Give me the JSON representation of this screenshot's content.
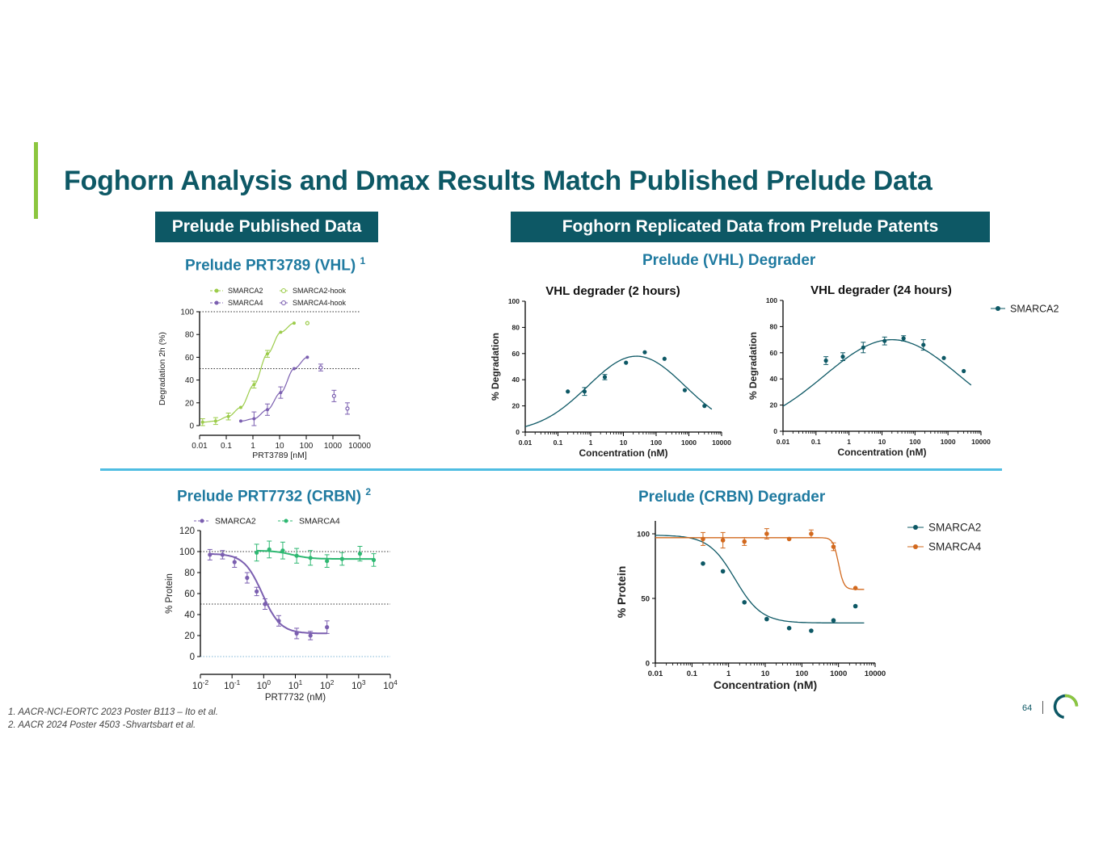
{
  "title": "Foghorn Analysis and Dmax Results Match Published Prelude Data",
  "banners": {
    "left": "Prelude Published Data",
    "right": "Foghorn Replicated Data from Prelude Patents"
  },
  "subtitles": {
    "vhl_published": "Prelude PRT3789 (VHL)",
    "vhl_published_ref": "1",
    "vhl_replicated": "Prelude (VHL) Degrader",
    "crbn_published": "Prelude PRT7732 (CRBN)",
    "crbn_published_ref": "2",
    "crbn_replicated": "Prelude (CRBN) Degrader"
  },
  "footnotes": [
    "1. AACR-NCI-EORTC 2023 Poster B113 – Ito et al.",
    "2. AACR 2024 Poster 4503 -Shvartsbart et al."
  ],
  "page_number": "64",
  "colors": {
    "title": "#0d5865",
    "accent": "#8cc63f",
    "subtitle": "#1f7aa0",
    "divider": "#4fbde2",
    "teal_series": "#0d5865",
    "orange_series": "#d2691e",
    "green_series": "#9ccc4a",
    "purple_series": "#7b5fb0",
    "green2_series": "#2eb872"
  },
  "chart_data": [
    {
      "id": "prt3789",
      "type": "scatter",
      "title": "",
      "xlabel": "PRT3789 [nM]",
      "ylabel": "Degradation 2h (%)",
      "xscale": "log",
      "xlim": [
        0.01,
        10000
      ],
      "ylim": [
        0,
        100
      ],
      "xticks": [
        0.01,
        0.1,
        1,
        10,
        100,
        1000,
        10000
      ],
      "xtick_labels": [
        "0.01",
        "0.1",
        "1",
        "10",
        "100",
        "1000",
        "10000"
      ],
      "yticks": [
        0,
        20,
        40,
        60,
        80,
        100
      ],
      "ytick_labels": [
        "0",
        "20",
        "40",
        "60",
        "80",
        "100"
      ],
      "reference_lines": [
        50,
        100
      ],
      "legend_position": "top",
      "series": [
        {
          "name": "SMARCA2",
          "color": "#9ccc4a",
          "marker": "filled",
          "x": [
            0.013,
            0.04,
            0.12,
            0.35,
            1.1,
            3.5,
            11,
            35
          ],
          "y": [
            3,
            4,
            8,
            16,
            36,
            63,
            82,
            90
          ],
          "err": [
            3,
            3,
            3,
            0,
            3,
            3,
            0,
            0
          ],
          "curve": true
        },
        {
          "name": "SMARCA4",
          "color": "#7b5fb0",
          "marker": "filled",
          "x": [
            0.35,
            1.1,
            3.5,
            11,
            35,
            110
          ],
          "y": [
            4,
            6,
            14,
            29,
            50,
            60
          ],
          "err": [
            0,
            6,
            5,
            5,
            0,
            0
          ],
          "curve": true
        },
        {
          "name": "SMARCA2-hook",
          "color": "#9ccc4a",
          "marker": "open",
          "x": [
            110
          ],
          "y": [
            90
          ],
          "err": [
            0
          ],
          "curve": false
        },
        {
          "name": "SMARCA4-hook",
          "color": "#7b5fb0",
          "marker": "open",
          "x": [
            350,
            1100,
            3500
          ],
          "y": [
            51,
            26,
            15
          ],
          "err": [
            3,
            5,
            5
          ],
          "curve": false
        }
      ]
    },
    {
      "id": "vhl2h",
      "type": "scatter",
      "title": "VHL degrader (2 hours)",
      "xlabel": "Concentration (nM)",
      "ylabel": "% Degradation",
      "xscale": "log",
      "xlim": [
        0.01,
        10000
      ],
      "ylim": [
        0,
        100
      ],
      "xticks": [
        0.01,
        0.1,
        1,
        10,
        100,
        1000,
        10000
      ],
      "xtick_labels": [
        "0.01",
        "0.1",
        "1",
        "10",
        "100",
        "1000",
        "10000"
      ],
      "yticks": [
        0,
        20,
        40,
        60,
        80,
        100
      ],
      "ytick_labels": [
        "0",
        "20",
        "40",
        "60",
        "80",
        "100"
      ],
      "series": [
        {
          "name": "SMARCA2",
          "color": "#0d5865",
          "marker": "filled",
          "x": [
            0.2,
            0.65,
            2.7,
            12,
            45,
            180,
            750,
            3000
          ],
          "y": [
            31,
            31,
            42,
            53,
            61,
            56,
            32,
            20
          ],
          "err": [
            0,
            3,
            2,
            0,
            0,
            0,
            0,
            0
          ],
          "curve": true,
          "curve_model": {
            "kind": "bell",
            "peak": 58,
            "center_log10": 1.4,
            "width": 2.1
          }
        }
      ]
    },
    {
      "id": "vhl24h",
      "type": "scatter",
      "title": "VHL degrader (24 hours)",
      "xlabel": "Concentration (nM)",
      "ylabel": "% Degradation",
      "xscale": "log",
      "xlim": [
        0.01,
        10000
      ],
      "ylim": [
        0,
        100
      ],
      "xticks": [
        0.01,
        0.1,
        1,
        10,
        100,
        1000,
        10000
      ],
      "xtick_labels": [
        "0.01",
        "0.1",
        "1",
        "10",
        "100",
        "1000",
        "10000"
      ],
      "yticks": [
        0,
        20,
        40,
        60,
        80,
        100
      ],
      "ytick_labels": [
        "0",
        "20",
        "40",
        "60",
        "80",
        "100"
      ],
      "legend_position": "right",
      "series": [
        {
          "name": "SMARCA2",
          "color": "#0d5865",
          "marker": "filled",
          "x": [
            0.2,
            0.65,
            2.7,
            12,
            45,
            180,
            750,
            3000
          ],
          "y": [
            54,
            57,
            64,
            69,
            71,
            66,
            56,
            46
          ],
          "err": [
            3,
            3,
            4,
            3,
            2,
            4,
            0,
            0
          ],
          "curve": true,
          "curve_model": {
            "kind": "bell",
            "peak": 70,
            "center_log10": 1.3,
            "width": 2.9
          }
        }
      ]
    },
    {
      "id": "prt7732",
      "type": "scatter",
      "title": "",
      "xlabel": "PRT7732 (nM)",
      "ylabel": "% Protein",
      "xscale": "log",
      "xlim": [
        0.01,
        10000
      ],
      "ylim": [
        0,
        120
      ],
      "xticks": [
        0.01,
        0.1,
        1,
        10,
        100,
        1000,
        10000
      ],
      "xtick_labels": [
        [
          "10",
          "-2"
        ],
        [
          "10",
          "-1"
        ],
        [
          "10",
          "0"
        ],
        [
          "10",
          "1"
        ],
        [
          "10",
          "2"
        ],
        [
          "10",
          "3"
        ],
        [
          "10",
          "4"
        ]
      ],
      "yticks": [
        0,
        20,
        40,
        60,
        80,
        100,
        120
      ],
      "ytick_labels": [
        "0",
        "20",
        "40",
        "60",
        "80",
        "100",
        "120"
      ],
      "reference_lines": [
        0,
        50,
        100
      ],
      "legend_position": "top",
      "series": [
        {
          "name": "SMARCA2",
          "color": "#7b5fb0",
          "marker": "filled",
          "x": [
            0.02,
            0.05,
            0.12,
            0.3,
            0.6,
            1.1,
            3,
            11,
            30,
            100
          ],
          "y": [
            97,
            97,
            90,
            75,
            62,
            50,
            34,
            22,
            20,
            28
          ],
          "err": [
            5,
            4,
            5,
            5,
            4,
            5,
            5,
            5,
            4,
            6
          ],
          "curve": true,
          "curve_model": {
            "kind": "sigmoid_down",
            "top": 98,
            "bottom": 22,
            "ic50": 0.9,
            "hill": 1.5
          }
        },
        {
          "name": "SMARCA4",
          "color": "#2eb872",
          "marker": "filled",
          "x": [
            0.6,
            1.5,
            4,
            11,
            30,
            100,
            300,
            1100,
            3000
          ],
          "y": [
            99,
            102,
            101,
            96,
            94,
            91,
            93,
            98,
            92
          ],
          "err": [
            8,
            8,
            8,
            7,
            7,
            6,
            6,
            7,
            6
          ],
          "curve": true,
          "curve_model": {
            "kind": "sigmoid_down",
            "top": 101,
            "bottom": 93,
            "ic50": 8,
            "hill": 1.5
          }
        }
      ]
    },
    {
      "id": "crbn",
      "type": "scatter",
      "title": "",
      "xlabel": "Concentration (nM)",
      "ylabel": "% Protein",
      "xscale": "log",
      "xlim": [
        0.01,
        10000
      ],
      "ylim": [
        0,
        110
      ],
      "xticks": [
        0.01,
        0.1,
        1,
        10,
        100,
        1000,
        10000
      ],
      "xtick_labels": [
        "0.01",
        "0.1",
        "1",
        "10",
        "100",
        "1000",
        "10000"
      ],
      "yticks": [
        0,
        50,
        100
      ],
      "ytick_labels": [
        "0",
        "50",
        "100"
      ],
      "legend_position": "right",
      "series": [
        {
          "name": "SMARCA2",
          "color": "#0d5865",
          "marker": "filled",
          "x": [
            0.2,
            0.7,
            2.7,
            11,
            45,
            180,
            730,
            2900
          ],
          "y": [
            77,
            71,
            47,
            34,
            27,
            25,
            33,
            44
          ],
          "err": [
            0,
            0,
            0,
            0,
            0,
            0,
            0,
            0
          ],
          "curve": true,
          "curve_model": {
            "kind": "sigmoid_down",
            "top": 99,
            "bottom": 31,
            "ic50": 1.5,
            "hill": 1.2
          }
        },
        {
          "name": "SMARCA4",
          "color": "#d2691e",
          "marker": "filled",
          "x": [
            0.2,
            0.7,
            2.7,
            11,
            45,
            180,
            730,
            2900
          ],
          "y": [
            96,
            95,
            94,
            100,
            96,
            100,
            90,
            58
          ],
          "err": [
            5,
            6,
            3,
            4,
            0,
            3,
            3,
            0
          ],
          "curve": true,
          "curve_model": {
            "kind": "sigmoid_down",
            "top": 97,
            "bottom": 57,
            "ic50": 1000,
            "hill": 6
          }
        }
      ]
    }
  ]
}
